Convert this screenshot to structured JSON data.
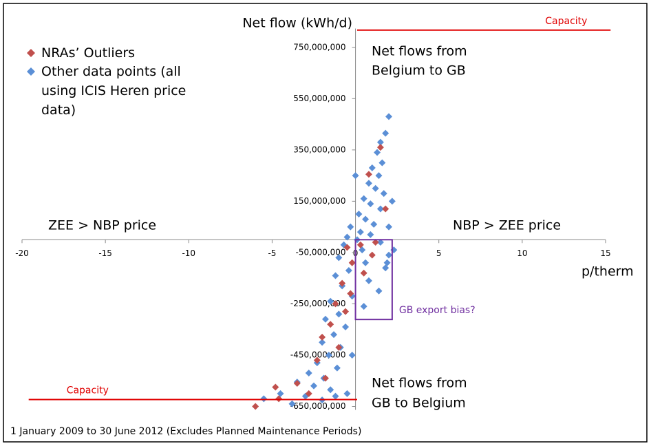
{
  "chart_data": {
    "type": "scatter",
    "y_axis_label": "Net flow (kWh/d)",
    "x_axis_label": "p/therm",
    "xlim": [
      -20,
      15
    ],
    "ylim": [
      -650000000,
      850000000
    ],
    "xticks": [
      -20,
      -15,
      -10,
      -5,
      0,
      5,
      10,
      15
    ],
    "yticks": [
      {
        "value": 750000000,
        "label": "750,000,000"
      },
      {
        "value": 550000000,
        "label": "550,000,000"
      },
      {
        "value": 350000000,
        "label": "350,000,000"
      },
      {
        "value": 150000000,
        "label": "150,000,000"
      },
      {
        "value": -50000000,
        "label": "-50,000,000"
      },
      {
        "value": -250000000,
        "label": "-250,000,000"
      },
      {
        "value": -450000000,
        "label": "-450,000,000"
      },
      {
        "value": -650000000,
        "label": "-650,000,000"
      }
    ],
    "grid": false,
    "series": [
      {
        "name": "NRAs’ Outliers",
        "color": "#c0504d",
        "x": [
          1.5,
          0.8,
          1.8,
          0.3,
          1.0,
          -0.2,
          0.5,
          -0.8,
          -0.3,
          -1.2,
          -0.6,
          -1.5,
          -2.0,
          -1.0,
          -2.3,
          -4.8,
          -6.0,
          -3.5,
          -4.6,
          -2.8,
          -1.8,
          1.2,
          -0.5
        ],
        "y": [
          360000000,
          255000000,
          120000000,
          -20000000,
          -60000000,
          -90000000,
          -130000000,
          -170000000,
          -210000000,
          -250000000,
          -280000000,
          -330000000,
          -380000000,
          -420000000,
          -470000000,
          -575000000,
          -650000000,
          -560000000,
          -620000000,
          -600000000,
          -540000000,
          -10000000,
          -30000000
        ]
      },
      {
        "name": "Other data points (all using ICIS Heren price data)",
        "color": "#5b8fd6",
        "x": [
          2.0,
          1.8,
          1.5,
          1.3,
          1.6,
          1.0,
          1.4,
          0.8,
          1.2,
          1.7,
          0.5,
          0.9,
          1.5,
          0.2,
          0.6,
          1.1,
          -0.3,
          0.3,
          0.9,
          -0.5,
          0.1,
          1.5,
          -0.7,
          0.4,
          2.0,
          -1.0,
          0.6,
          1.8,
          -0.4,
          -1.2,
          0.8,
          -0.8,
          1.4,
          -0.2,
          -1.5,
          0.5,
          -1.0,
          -1.8,
          -0.6,
          -1.3,
          -2.0,
          -0.9,
          -1.6,
          -2.3,
          -1.1,
          -2.8,
          -1.9,
          -3.5,
          -2.5,
          -1.5,
          -4.5,
          -3.0,
          -2.0,
          -5.5,
          -3.8,
          -1.2,
          2.2,
          2.0,
          0.0,
          -0.2,
          -0.5,
          2.3,
          1.9
        ],
        "y": [
          480000000,
          415000000,
          380000000,
          340000000,
          300000000,
          280000000,
          250000000,
          220000000,
          200000000,
          180000000,
          160000000,
          140000000,
          120000000,
          100000000,
          80000000,
          60000000,
          50000000,
          30000000,
          20000000,
          10000000,
          0,
          -10000000,
          -20000000,
          -40000000,
          -60000000,
          -70000000,
          -90000000,
          -110000000,
          -120000000,
          -140000000,
          -160000000,
          -180000000,
          -200000000,
          -220000000,
          -240000000,
          -260000000,
          -290000000,
          -310000000,
          -340000000,
          -370000000,
          -400000000,
          -420000000,
          -450000000,
          -480000000,
          -500000000,
          -520000000,
          -540000000,
          -555000000,
          -570000000,
          -585000000,
          -600000000,
          -610000000,
          -625000000,
          -620000000,
          -640000000,
          -610000000,
          150000000,
          50000000,
          250000000,
          -450000000,
          -600000000,
          -40000000,
          -90000000
        ]
      }
    ],
    "capacity_lines": [
      {
        "label": "Capacity",
        "color": "#e00000",
        "x": [
          0.1,
          15.3
        ],
        "y": 817000000
      },
      {
        "label": "Capacity",
        "color": "#e00000",
        "x": [
          -19.6,
          0.1
        ],
        "y": -623000000
      }
    ],
    "box": {
      "label": "GB export bias?",
      "color": "#7030a0",
      "x": [
        0,
        2.2
      ],
      "y": [
        0,
        -311000000
      ]
    },
    "annotations": {
      "upper_right": [
        "Net flows from",
        "Belgium to GB"
      ],
      "lower_right": [
        "Net flows from",
        "GB to Belgium"
      ],
      "left_quadrant": "ZEE > NBP price",
      "right_quadrant": "NBP > ZEE price"
    },
    "footnote": "1 January 2009 to 30 June 2012 (Excludes Planned Maintenance Periods)"
  }
}
